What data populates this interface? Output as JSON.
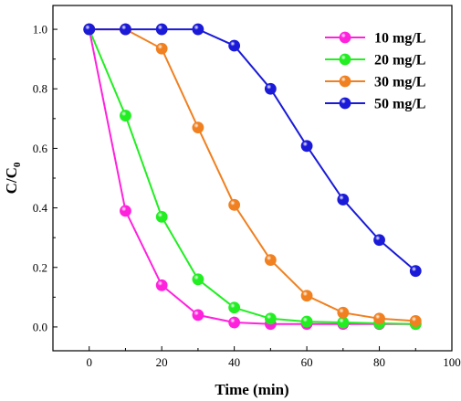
{
  "chart_data": {
    "type": "line",
    "title": "",
    "xlabel": "Time (min)",
    "ylabel_main": "C/C",
    "ylabel_sub": "0",
    "xlim": [
      -10,
      100
    ],
    "ylim": [
      -0.08,
      1.08
    ],
    "xticks": [
      0,
      20,
      40,
      60,
      80,
      100
    ],
    "yticks": [
      0.0,
      0.2,
      0.4,
      0.6,
      0.8,
      1.0
    ],
    "xtick_labels": [
      "0",
      "20",
      "40",
      "60",
      "80",
      "100"
    ],
    "ytick_labels": [
      "0.0",
      "0.2",
      "0.4",
      "0.6",
      "0.8",
      "1.0"
    ],
    "grid": false,
    "legend_position": "top-right",
    "x": [
      0,
      10,
      20,
      30,
      40,
      50,
      60,
      70,
      80,
      90
    ],
    "series": [
      {
        "name": "10 mg/L",
        "color": "#ff22dd",
        "values": [
          1.0,
          0.39,
          0.14,
          0.04,
          0.015,
          0.01,
          0.01,
          0.01,
          0.01,
          0.01
        ]
      },
      {
        "name": "20 mg/L",
        "color": "#22ee22",
        "values": [
          1.0,
          0.71,
          0.37,
          0.16,
          0.065,
          0.028,
          0.018,
          0.015,
          0.012,
          0.01
        ]
      },
      {
        "name": "30 mg/L",
        "color": "#f08020",
        "values": [
          1.0,
          1.0,
          0.935,
          0.67,
          0.41,
          0.225,
          0.105,
          0.048,
          0.028,
          0.02
        ]
      },
      {
        "name": "50 mg/L",
        "color": "#1a1ad8",
        "values": [
          1.0,
          1.0,
          1.0,
          1.0,
          0.945,
          0.8,
          0.608,
          0.428,
          0.292,
          0.188
        ]
      }
    ]
  }
}
